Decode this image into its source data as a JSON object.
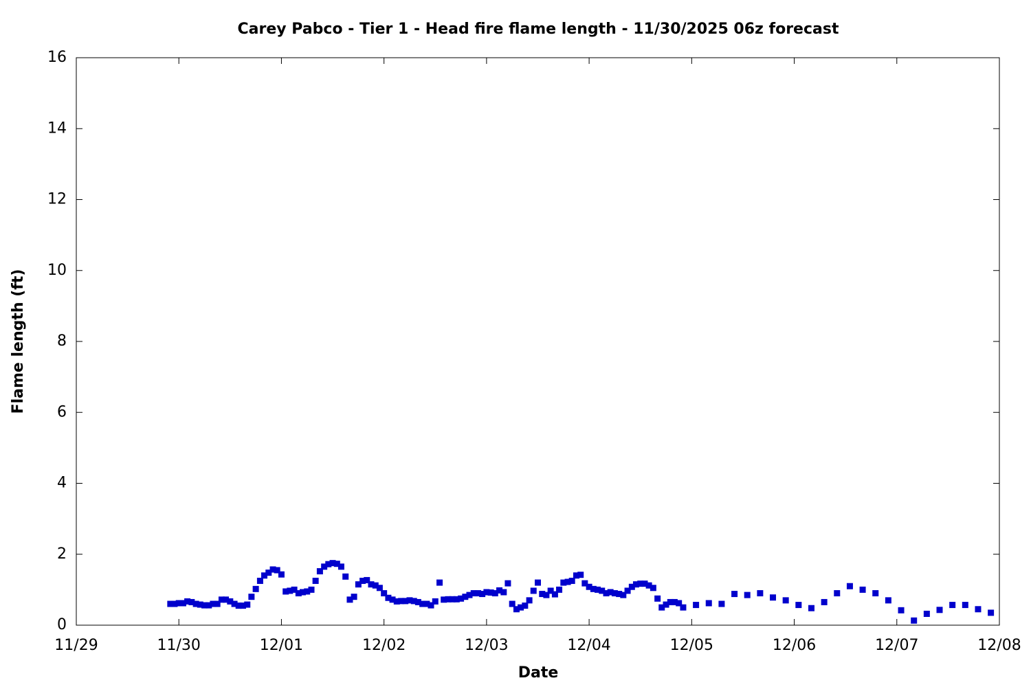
{
  "chart_data": {
    "type": "scatter",
    "title": "Carey Pabco - Tier 1 - Head fire flame length - 11/30/2025 06z forecast",
    "x_label": "Date",
    "y_label": "Flame length (ft)",
    "xlim": [
      0,
      9
    ],
    "xticks": [
      {
        "value": 0,
        "label": "11/29"
      },
      {
        "value": 1,
        "label": "11/30"
      },
      {
        "value": 2,
        "label": "12/01"
      },
      {
        "value": 3,
        "label": "12/02"
      },
      {
        "value": 4,
        "label": "12/03"
      },
      {
        "value": 5,
        "label": "12/04"
      },
      {
        "value": 6,
        "label": "12/05"
      },
      {
        "value": 7,
        "label": "12/06"
      },
      {
        "value": 8,
        "label": "12/07"
      },
      {
        "value": 9,
        "label": "12/08"
      }
    ],
    "ylim": [
      0,
      16
    ],
    "yticks": [
      0,
      2,
      4,
      6,
      8,
      10,
      12,
      14,
      16
    ],
    "series": [
      {
        "color": "#0000cc",
        "x": [
          0.917,
          0.958,
          1,
          1.042,
          1.083,
          1.125,
          1.167,
          1.208,
          1.25,
          1.292,
          1.333,
          1.375,
          1.417,
          1.458,
          1.5,
          1.542,
          1.583,
          1.625,
          1.667,
          1.708,
          1.75,
          1.792,
          1.833,
          1.875,
          1.917,
          1.958,
          2,
          2.042,
          2.083,
          2.125,
          2.167,
          2.208,
          2.25,
          2.292,
          2.333,
          2.375,
          2.417,
          2.458,
          2.5,
          2.542,
          2.583,
          2.625,
          2.667,
          2.708,
          2.75,
          2.792,
          2.833,
          2.875,
          2.917,
          2.958,
          3,
          3.042,
          3.083,
          3.125,
          3.167,
          3.208,
          3.25,
          3.292,
          3.333,
          3.375,
          3.417,
          3.458,
          3.5,
          3.542,
          3.583,
          3.625,
          3.667,
          3.708,
          3.75,
          3.792,
          3.833,
          3.875,
          3.917,
          3.958,
          4,
          4.042,
          4.083,
          4.125,
          4.167,
          4.208,
          4.25,
          4.292,
          4.333,
          4.375,
          4.417,
          4.458,
          4.5,
          4.542,
          4.583,
          4.625,
          4.667,
          4.708,
          4.75,
          4.792,
          4.833,
          4.875,
          4.917,
          4.958,
          5,
          5.042,
          5.083,
          5.125,
          5.167,
          5.208,
          5.25,
          5.292,
          5.333,
          5.375,
          5.417,
          5.458,
          5.5,
          5.542,
          5.583,
          5.625,
          5.667,
          5.708,
          5.75,
          5.792,
          5.833,
          5.875,
          5.917,
          6.042,
          6.167,
          6.292,
          6.417,
          6.542,
          6.667,
          6.792,
          6.917,
          7.042,
          7.167,
          7.292,
          7.417,
          7.542,
          7.667,
          7.792,
          7.917,
          8.042,
          8.167,
          8.292,
          8.417,
          8.542,
          8.667,
          8.792,
          8.917
        ],
        "values": [
          0.6,
          0.6,
          0.62,
          0.62,
          0.67,
          0.65,
          0.6,
          0.58,
          0.56,
          0.56,
          0.6,
          0.6,
          0.72,
          0.72,
          0.67,
          0.6,
          0.55,
          0.55,
          0.58,
          0.8,
          1.02,
          1.25,
          1.4,
          1.48,
          1.57,
          1.55,
          1.43,
          0.95,
          0.97,
          1.0,
          0.9,
          0.93,
          0.95,
          1.0,
          1.25,
          1.52,
          1.65,
          1.72,
          1.75,
          1.73,
          1.65,
          1.37,
          0.72,
          0.8,
          1.15,
          1.25,
          1.27,
          1.15,
          1.12,
          1.05,
          0.9,
          0.77,
          0.72,
          0.67,
          0.68,
          0.68,
          0.7,
          0.68,
          0.65,
          0.6,
          0.6,
          0.56,
          0.67,
          1.2,
          0.72,
          0.73,
          0.73,
          0.73,
          0.75,
          0.8,
          0.85,
          0.9,
          0.9,
          0.88,
          0.93,
          0.92,
          0.9,
          0.98,
          0.93,
          1.18,
          0.6,
          0.45,
          0.5,
          0.55,
          0.7,
          0.97,
          1.2,
          0.88,
          0.85,
          0.97,
          0.87,
          1.0,
          1.2,
          1.22,
          1.25,
          1.4,
          1.42,
          1.18,
          1.08,
          1.02,
          1.0,
          0.97,
          0.9,
          0.93,
          0.9,
          0.88,
          0.85,
          0.97,
          1.08,
          1.15,
          1.17,
          1.17,
          1.12,
          1.05,
          0.75,
          0.5,
          0.58,
          0.65,
          0.65,
          0.62,
          0.5,
          0.57,
          0.62,
          0.6,
          0.88,
          0.85,
          0.9,
          0.78,
          0.7,
          0.57,
          0.48,
          0.65,
          0.9,
          1.1,
          1.0,
          0.9,
          0.7,
          0.42,
          0.13,
          0.32,
          0.43,
          0.57,
          0.57,
          0.45,
          0.35
        ]
      }
    ]
  }
}
